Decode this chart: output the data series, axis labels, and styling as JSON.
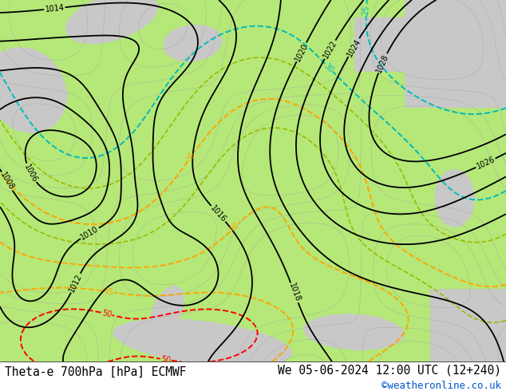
{
  "title_left": "Theta-e 700hPa [hPa] ECMWF",
  "title_right": "We 05-06-2024 12:00 UTC (12+240)",
  "title_right2": "©weatheronline.co.uk",
  "bg_color": "#ffffff",
  "land_color": "#b5e878",
  "sea_color": "#c8c8c8",
  "pressure_color": "#000000",
  "theta_orange_color": "#ffa500",
  "theta_red_color": "#ff0000",
  "theta_cyan_color": "#00bbbb",
  "theta_lgreen_color": "#88cc00",
  "title_fontsize": 10.5,
  "label_fontsize": 7,
  "fig_width": 6.34,
  "fig_height": 4.9,
  "dpi": 100
}
